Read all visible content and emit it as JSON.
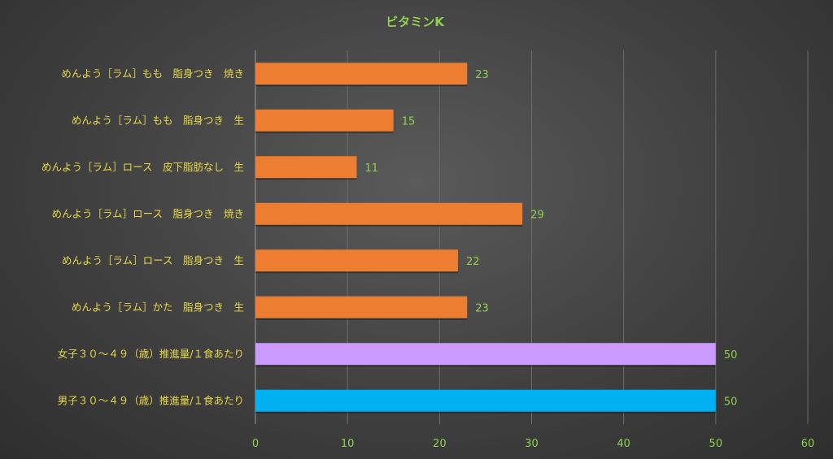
{
  "chart_data": {
    "type": "bar",
    "orientation": "horizontal",
    "title": "ビタミンK",
    "categories": [
      "めんよう［ラム］もも　脂身つき　焼き",
      "めんよう［ラム］もも　脂身つき　生",
      "めんよう［ラム］ロース　皮下脂肪なし　生",
      "めんよう［ラム］ロース　脂身つき　焼き",
      "めんよう［ラム］ロース　脂身つき　生",
      "めんよう［ラム］かた　脂身つき　生",
      "女子３０～４９（歳）推進量/１食あたり",
      "男子３０～４９（歳）推進量/１食あたり"
    ],
    "values": [
      23,
      15,
      11,
      29,
      22,
      23,
      50,
      50
    ],
    "bar_colors": [
      "#ed7d31",
      "#ed7d31",
      "#ed7d31",
      "#ed7d31",
      "#ed7d31",
      "#ed7d31",
      "#cc99ff",
      "#00b0f0"
    ],
    "xlim": [
      0,
      60
    ],
    "xticks": [
      0,
      10,
      20,
      30,
      40,
      50,
      60
    ],
    "grid": true,
    "xlabel": "",
    "ylabel": ""
  },
  "colors": {
    "title": "#8fd14f",
    "category_labels": "#e8d84a",
    "tick_labels": "#8fd14f",
    "data_labels": "#8fd14f"
  }
}
